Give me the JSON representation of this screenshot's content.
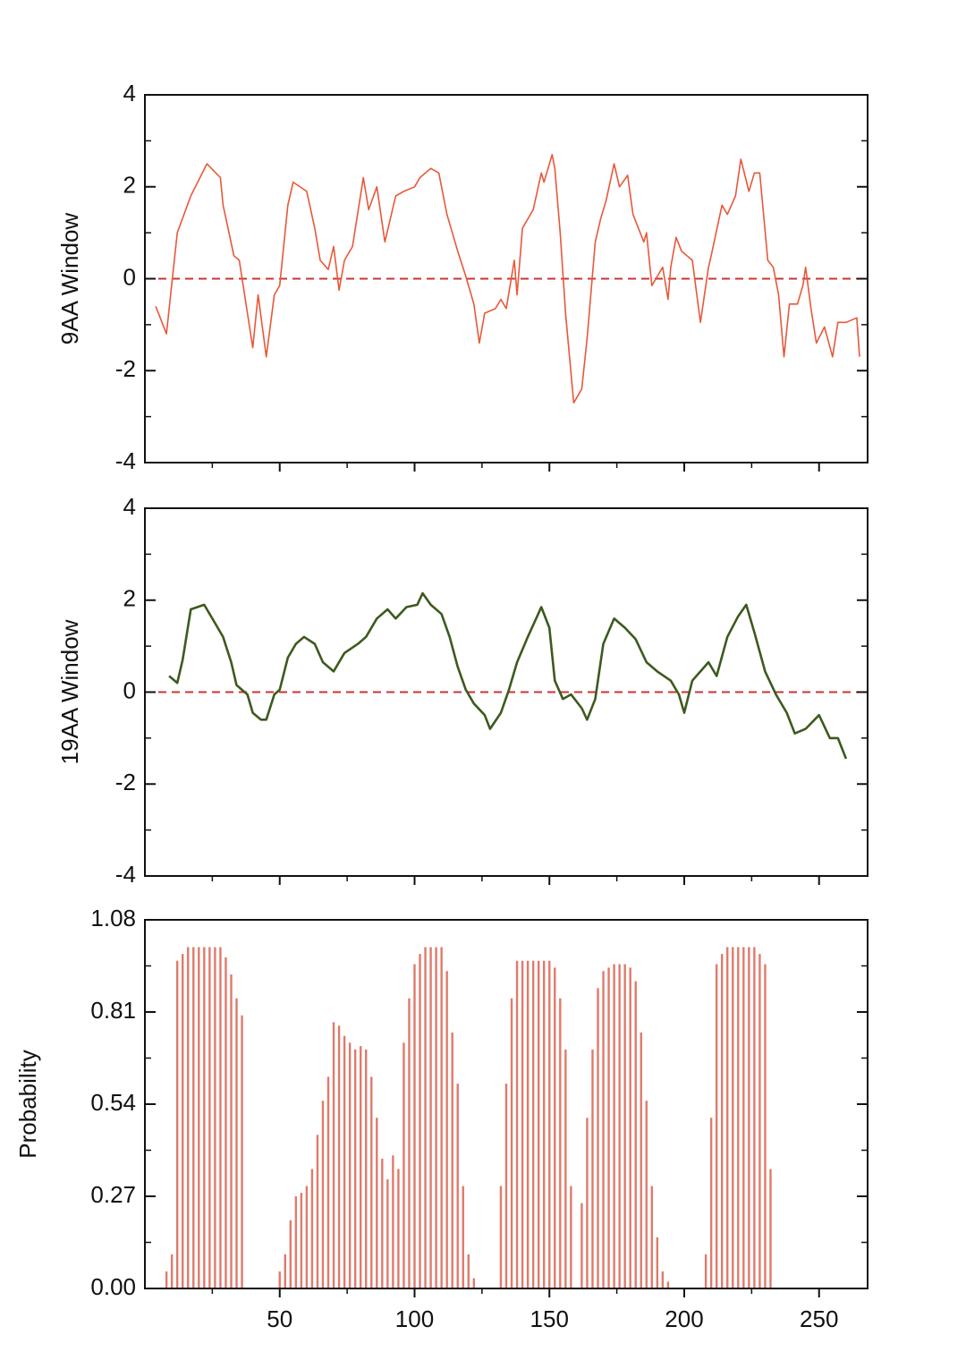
{
  "chart_data": [
    {
      "type": "line",
      "ylabel": "9AA Window",
      "xlim": [
        0,
        268
      ],
      "ylim": [
        -4,
        4
      ],
      "yticks": [
        -4,
        -2,
        0,
        2,
        4
      ],
      "hline": 0,
      "series": [
        {
          "color": "#e8583a",
          "x": [
            4,
            8,
            12,
            17,
            23,
            28,
            29,
            33,
            35,
            40,
            42,
            45,
            48,
            50,
            53,
            55,
            60,
            63,
            65,
            68,
            70,
            72,
            74,
            77,
            81,
            83,
            86,
            89,
            93,
            96,
            100,
            102,
            106,
            109,
            112,
            116,
            119,
            122,
            124,
            126,
            130,
            132,
            134,
            137,
            138,
            140,
            144,
            147,
            148,
            151,
            152,
            154,
            156,
            159,
            162,
            164,
            167,
            169,
            171,
            174,
            176,
            179,
            181,
            185,
            186,
            188,
            190,
            192,
            194,
            195,
            197,
            199,
            203,
            206,
            209,
            210,
            214,
            216,
            219,
            221,
            224,
            226,
            228,
            231,
            233,
            235,
            237,
            239,
            242,
            244,
            245,
            247,
            249,
            252,
            255,
            257,
            260,
            264,
            265
          ],
          "values": [
            -0.6,
            -1.2,
            1.0,
            1.8,
            2.5,
            2.2,
            1.6,
            0.5,
            0.4,
            -1.5,
            -0.35,
            -1.7,
            -0.35,
            -0.15,
            1.6,
            2.1,
            1.9,
            1.1,
            0.4,
            0.2,
            0.7,
            -0.25,
            0.4,
            0.7,
            2.2,
            1.5,
            2.0,
            0.8,
            1.8,
            1.9,
            2.0,
            2.2,
            2.4,
            2.3,
            1.4,
            0.6,
            0.05,
            -0.55,
            -1.4,
            -0.75,
            -0.65,
            -0.45,
            -0.65,
            0.4,
            -0.35,
            1.1,
            1.5,
            2.3,
            2.1,
            2.7,
            2.4,
            1.0,
            -0.75,
            -2.7,
            -2.4,
            -1.3,
            0.8,
            1.3,
            1.7,
            2.5,
            2.0,
            2.25,
            1.4,
            0.8,
            1.0,
            -0.15,
            0.05,
            0.25,
            -0.45,
            0.25,
            0.9,
            0.6,
            0.4,
            -0.95,
            0.25,
            0.5,
            1.6,
            1.4,
            1.8,
            2.6,
            1.9,
            2.3,
            2.3,
            0.4,
            0.25,
            -0.35,
            -1.7,
            -0.55,
            -0.55,
            -0.15,
            0.25,
            -0.65,
            -1.4,
            -1.05,
            -1.7,
            -0.95,
            -0.95,
            -0.85,
            -1.7
          ]
        }
      ]
    },
    {
      "type": "line",
      "ylabel": "19AA Window",
      "xlim": [
        0,
        268
      ],
      "ylim": [
        -4,
        4
      ],
      "yticks": [
        -4,
        -2,
        0,
        2,
        4
      ],
      "hline": 0,
      "series": [
        {
          "color": "#3d5a1e",
          "x": [
            9,
            12,
            14,
            17,
            22,
            26,
            29,
            32,
            34,
            38,
            40,
            43,
            45,
            48,
            50,
            53,
            56,
            59,
            63,
            66,
            70,
            74,
            79,
            82,
            86,
            90,
            93,
            97,
            101,
            103,
            106,
            110,
            113,
            116,
            119,
            122,
            126,
            128,
            132,
            135,
            138,
            142,
            147,
            150,
            152,
            155,
            158,
            162,
            164,
            167,
            170,
            174,
            178,
            182,
            186,
            190,
            195,
            198,
            200,
            203,
            206,
            209,
            212,
            216,
            220,
            223,
            226,
            230,
            234,
            238,
            241,
            245,
            250,
            254,
            257,
            260
          ],
          "values": [
            0.35,
            0.2,
            0.7,
            1.8,
            1.9,
            1.5,
            1.2,
            0.65,
            0.15,
            -0.05,
            -0.45,
            -0.6,
            -0.6,
            -0.05,
            0.05,
            0.75,
            1.05,
            1.2,
            1.05,
            0.65,
            0.45,
            0.85,
            1.05,
            1.2,
            1.6,
            1.8,
            1.6,
            1.85,
            1.9,
            2.15,
            1.9,
            1.7,
            1.2,
            0.55,
            0.05,
            -0.25,
            -0.5,
            -0.8,
            -0.45,
            0.05,
            0.65,
            1.2,
            1.85,
            1.4,
            0.25,
            -0.15,
            -0.05,
            -0.35,
            -0.6,
            -0.15,
            1.05,
            1.6,
            1.4,
            1.15,
            0.65,
            0.45,
            0.25,
            -0.05,
            -0.45,
            0.25,
            0.45,
            0.65,
            0.35,
            1.2,
            1.65,
            1.9,
            1.3,
            0.45,
            -0.05,
            -0.45,
            -0.9,
            -0.8,
            -0.5,
            -1.0,
            -1.0,
            -1.45
          ]
        }
      ]
    },
    {
      "type": "bar",
      "ylabel": "Probability",
      "color": "#e07a6a",
      "xlim": [
        0,
        268
      ],
      "ylim": [
        0,
        1.08
      ],
      "yticks": [
        {
          "value": 0,
          "label": "0.00"
        },
        0.27,
        0.54,
        0.81,
        1.08
      ],
      "xticks": [
        50,
        100,
        150,
        200,
        250
      ],
      "x": [
        8,
        10,
        12,
        14,
        16,
        18,
        20,
        22,
        24,
        26,
        28,
        30,
        32,
        34,
        36,
        50,
        52,
        54,
        56,
        58,
        60,
        62,
        64,
        66,
        68,
        70,
        72,
        74,
        76,
        78,
        80,
        82,
        84,
        86,
        88,
        90,
        92,
        94,
        96,
        98,
        100,
        102,
        104,
        106,
        108,
        110,
        112,
        114,
        116,
        118,
        120,
        122,
        132,
        134,
        136,
        138,
        140,
        142,
        144,
        146,
        148,
        150,
        152,
        154,
        156,
        158,
        162,
        164,
        166,
        168,
        170,
        172,
        174,
        176,
        178,
        180,
        182,
        184,
        186,
        188,
        190,
        192,
        194,
        208,
        210,
        212,
        214,
        216,
        218,
        220,
        222,
        224,
        226,
        228,
        230,
        232
      ],
      "values": [
        0.05,
        0.1,
        0.96,
        0.98,
        1.0,
        1.0,
        1.0,
        1.0,
        1.0,
        1.0,
        1.0,
        0.97,
        0.92,
        0.85,
        0.8,
        0.05,
        0.1,
        0.2,
        0.27,
        0.28,
        0.3,
        0.35,
        0.45,
        0.55,
        0.62,
        0.78,
        0.77,
        0.74,
        0.72,
        0.7,
        0.71,
        0.7,
        0.62,
        0.5,
        0.38,
        0.32,
        0.39,
        0.35,
        0.72,
        0.85,
        0.95,
        0.98,
        1.0,
        1.0,
        1.0,
        1.0,
        0.93,
        0.75,
        0.6,
        0.3,
        0.1,
        0.03,
        0.3,
        0.6,
        0.85,
        0.96,
        0.96,
        0.96,
        0.96,
        0.96,
        0.96,
        0.96,
        0.94,
        0.85,
        0.7,
        0.3,
        0.25,
        0.5,
        0.7,
        0.88,
        0.93,
        0.94,
        0.95,
        0.95,
        0.95,
        0.94,
        0.9,
        0.75,
        0.55,
        0.3,
        0.15,
        0.05,
        0.02,
        0.1,
        0.5,
        0.95,
        0.98,
        1.0,
        1.0,
        1.0,
        1.0,
        1.0,
        1.0,
        0.98,
        0.95,
        0.35
      ]
    }
  ]
}
